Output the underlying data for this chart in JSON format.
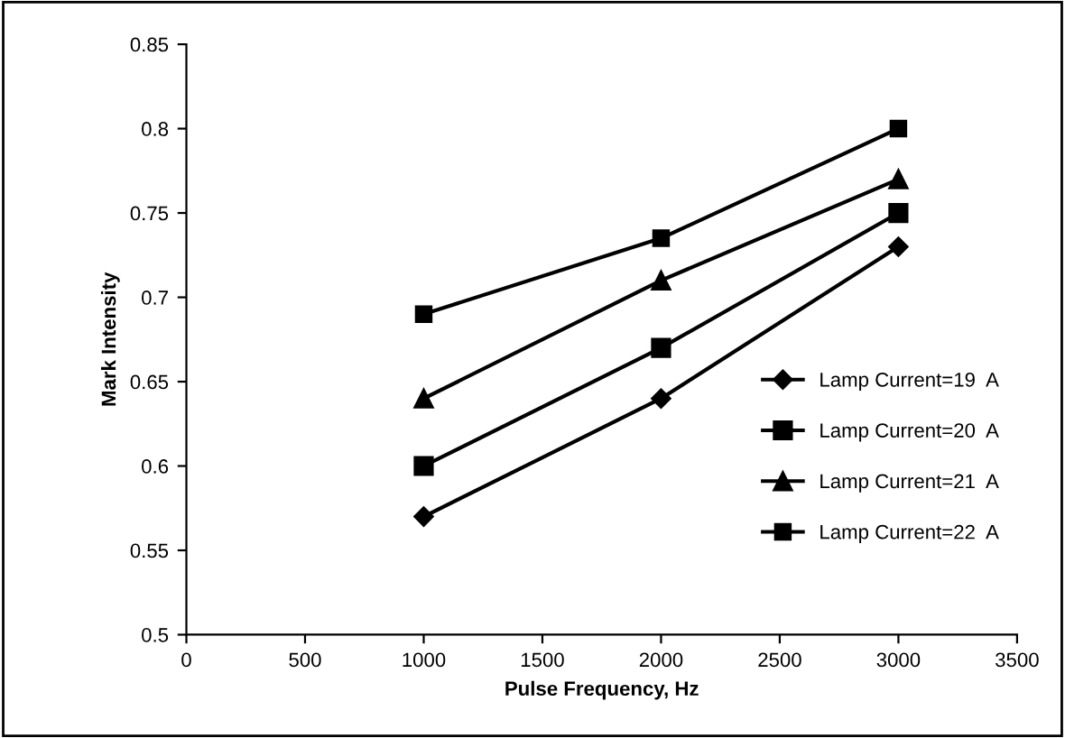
{
  "chart_data": {
    "type": "line",
    "xlabel": "Pulse Frequency, Hz",
    "ylabel": "Mark Intensity",
    "x": [
      1000,
      2000,
      3000
    ],
    "series": [
      {
        "name": "Lamp Current=19  A",
        "color": "#000000",
        "marker": "diamond",
        "values": [
          0.57,
          0.64,
          0.73
        ]
      },
      {
        "name": "Lamp Current=20  A",
        "color": "#000000",
        "marker": "square",
        "values": [
          0.6,
          0.67,
          0.75
        ]
      },
      {
        "name": "Lamp Current=21  A",
        "color": "#000000",
        "marker": "triangle",
        "values": [
          0.64,
          0.71,
          0.77
        ]
      },
      {
        "name": "Lamp Current=22  A",
        "color": "#000000",
        "marker": "square",
        "values": [
          0.69,
          0.735,
          0.8
        ]
      }
    ],
    "xlim": [
      0,
      3500
    ],
    "xticks": [
      0,
      500,
      1000,
      1500,
      2000,
      2500,
      3000,
      3500
    ],
    "ylim": [
      0.5,
      0.85
    ],
    "yticks": [
      0.5,
      0.55,
      0.6,
      0.65,
      0.7,
      0.75,
      0.8,
      0.85
    ],
    "grid": false,
    "legend": "right",
    "line_style": "solid"
  }
}
